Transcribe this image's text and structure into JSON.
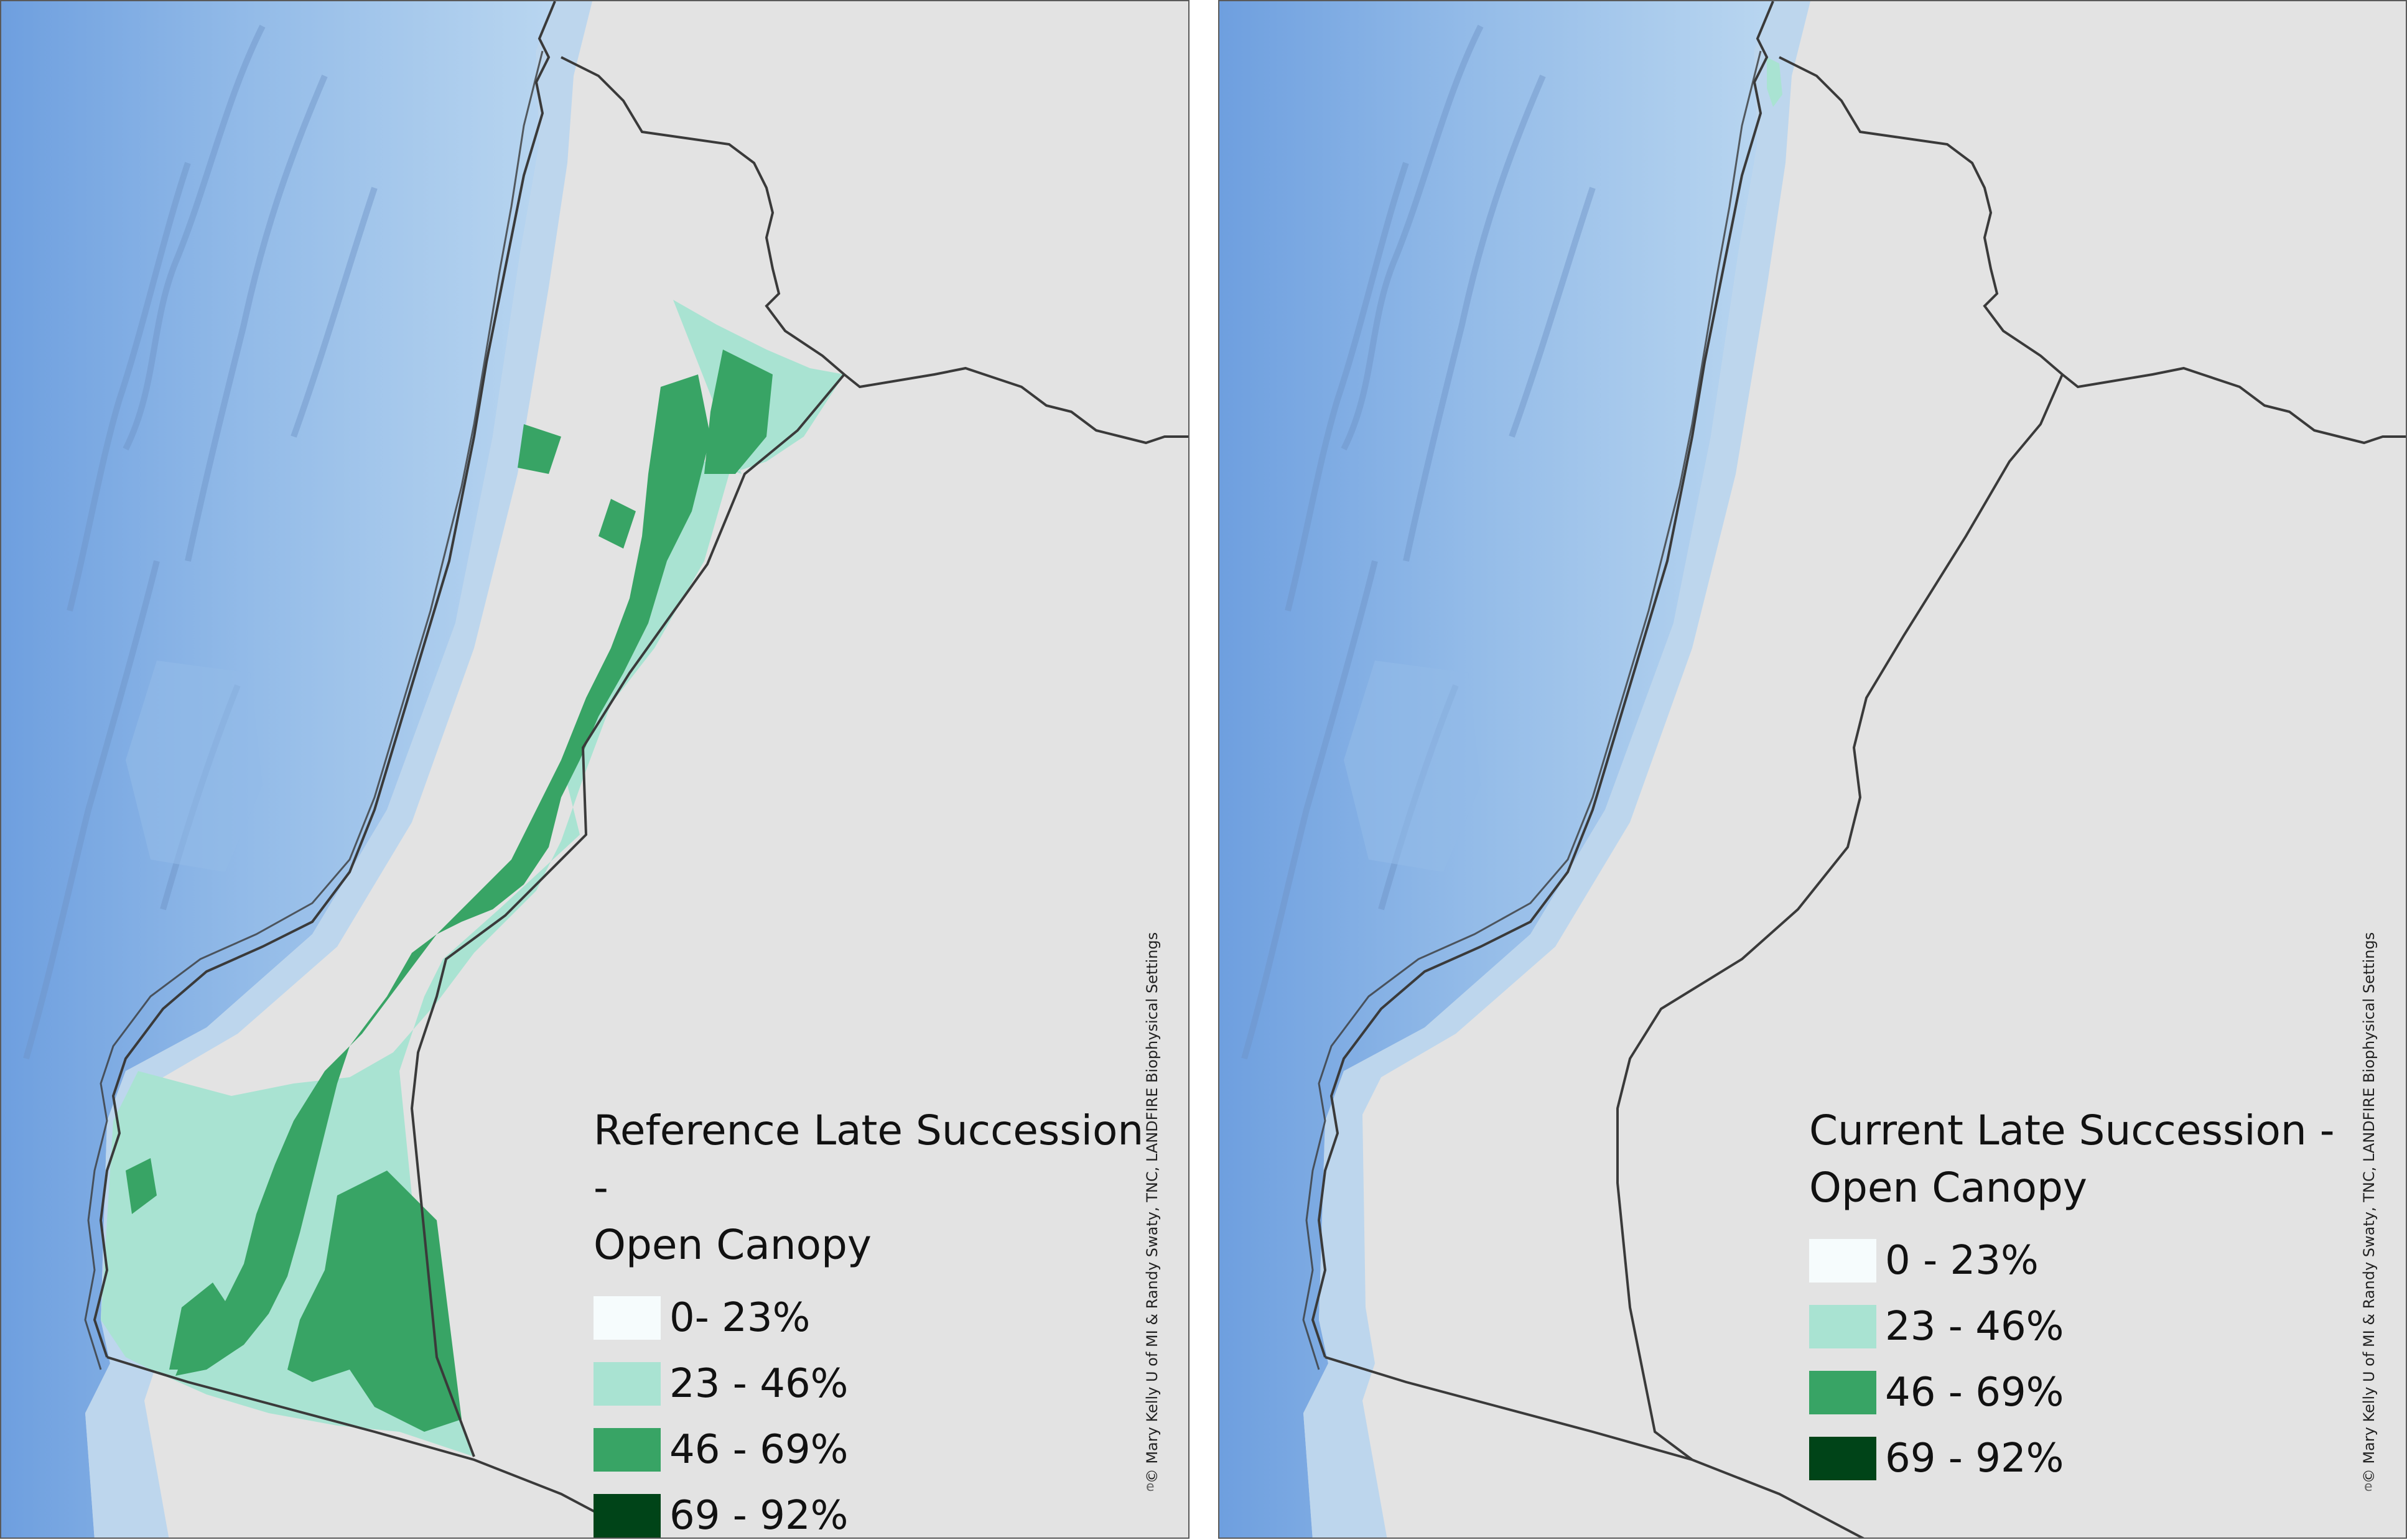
{
  "maps": [
    {
      "legend_title": "Reference Late Succession -\nOpen Canopy",
      "legend_items": [
        {
          "label": "0- 23%",
          "color": "#f6fcfd"
        },
        {
          "label": "23 - 46%",
          "color": "#a9e3d2"
        },
        {
          "label": "46 - 69%",
          "color": "#38a465"
        },
        {
          "label": "69 - 92%",
          "color": "#004418"
        }
      ],
      "credit": "© Mary Kelly U of MI & Randy Swaty, TNC, LANDFIRE Biophysical Settings",
      "mark": "e"
    },
    {
      "legend_title": "Current Late Succession -\nOpen Canopy",
      "legend_items": [
        {
          "label": "0 - 23%",
          "color": "#f6fcfd"
        },
        {
          "label": "23 - 46%",
          "color": "#a9e3d2"
        },
        {
          "label": "46 - 69%",
          "color": "#38a465"
        },
        {
          "label": "69 - 92%",
          "color": "#004418"
        }
      ],
      "credit": "© Mary Kelly U of MI & Randy Swaty, TNC, LANDFIRE Biophysical Settings",
      "mark": "e"
    }
  ],
  "colors": {
    "land": "#e3e3e3",
    "shelf_water": "#b9d6f0",
    "deep_water": "#8db4e6",
    "boundary": "#3a3a3a"
  }
}
